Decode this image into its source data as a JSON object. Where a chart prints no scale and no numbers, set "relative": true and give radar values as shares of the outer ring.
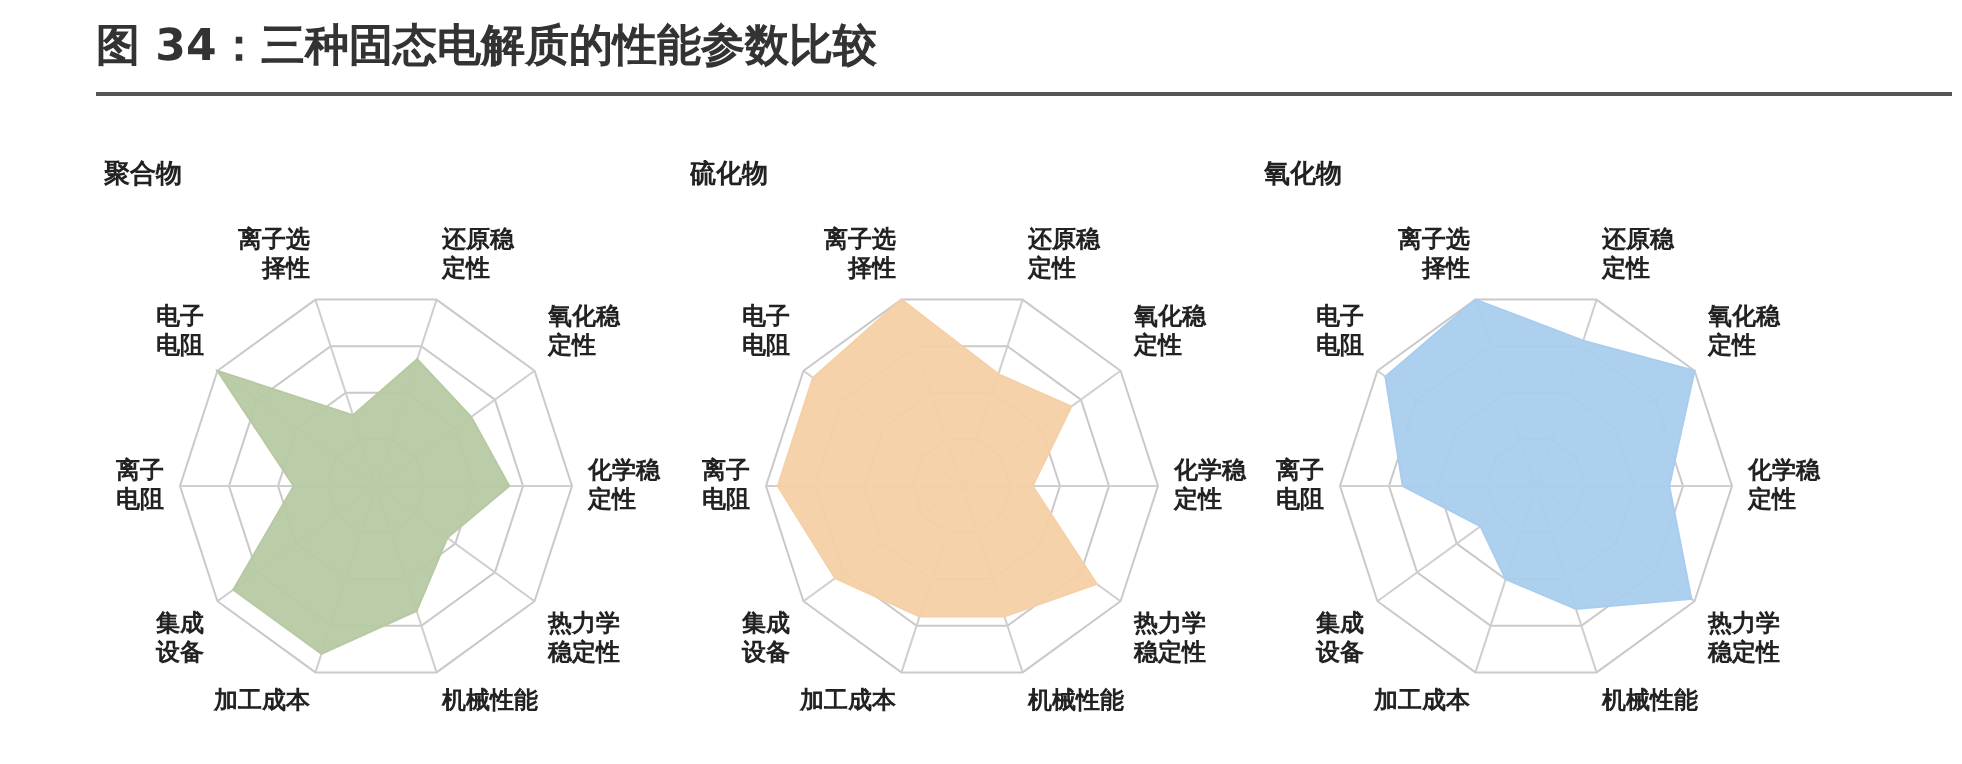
{
  "chart_data": [
    {
      "type": "radar",
      "title": "聚合物",
      "annotations": [
        "图 34：三种固态电解质的性能参数比较"
      ],
      "relative": true,
      "grid": true,
      "legend": false,
      "marker": "none",
      "categories": [
        "还原稳定性",
        "氧化稳定性",
        "化学稳定性",
        "热力学稳定性",
        "机械性能",
        "加工成本",
        "集成设备",
        "离子电阻",
        "电子电阻",
        "离子选择性"
      ],
      "series": [
        {
          "color": "#b7c9a3",
          "values": [
            0.68,
            0.6,
            0.68,
            0.45,
            0.67,
            0.9,
            0.9,
            0.42,
            1,
            0.38
          ]
        }
      ]
    },
    {
      "type": "radar",
      "title": "硫化物",
      "relative": true,
      "grid": true,
      "legend": false,
      "marker": "none",
      "categories": [
        "还原稳定性",
        "氧化稳定性",
        "化学稳定性",
        "热力学稳定性",
        "机械性能",
        "加工成本",
        "集成设备",
        "离子电阻",
        "电子电阻",
        "离子选择性"
      ],
      "series": [
        {
          "color": "#f5d0a6",
          "values": [
            0.6,
            0.69,
            0.36,
            0.85,
            0.7,
            0.7,
            0.8,
            0.94,
            0.94,
            1
          ]
        }
      ]
    },
    {
      "type": "radar",
      "title": "氧化物",
      "relative": true,
      "grid": true,
      "legend": false,
      "marker": "none",
      "categories": [
        "还原稳定性",
        "氧化稳定性",
        "化学稳定性",
        "热力学稳定性",
        "机械性能",
        "加工成本",
        "集成设备",
        "离子电阻",
        "电子电阻",
        "离子选择性"
      ],
      "series": [
        {
          "color": "#a9cdee",
          "values": [
            0.78,
            1,
            0.68,
            0.98,
            0.66,
            0.5,
            0.35,
            0.68,
            0.95,
            1
          ]
        }
      ]
    }
  ]
}
